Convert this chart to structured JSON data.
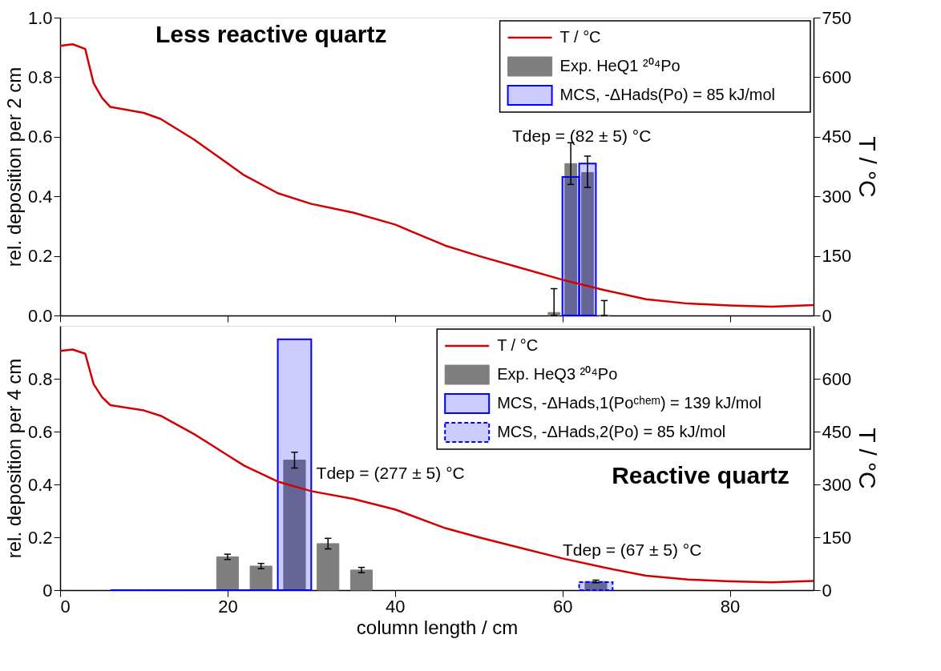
{
  "chart_data": [
    {
      "type": "bar",
      "ylabel": "rel. deposition per 2 cm",
      "y2label": "T / °C",
      "xlim": [
        0,
        90
      ],
      "xticks": [
        0,
        20,
        40,
        60,
        80
      ],
      "ylim": [
        0,
        1
      ],
      "yticks": [
        {
          "value": 0,
          "label": "0.0"
        },
        0.2,
        0.4,
        0.6,
        0.8,
        {
          "value": 1,
          "label": "1.0"
        }
      ],
      "y2lim": [
        0,
        750
      ],
      "y2ticks": [
        0,
        150,
        300,
        450,
        600,
        750
      ],
      "tick_labels": "y",
      "legend": "top right",
      "grid": false,
      "annotations": [
        "Less reactive quartz",
        "Tdep = (82 ± 5) °C"
      ],
      "series": [
        {
          "name": "T / °C",
          "type": "line",
          "axis": "y2",
          "color": "#d40000",
          "x": [
            0,
            1.5,
            3,
            4,
            5,
            6,
            10,
            12,
            16,
            20,
            22,
            26,
            30,
            35,
            40,
            46,
            50,
            55,
            60,
            65,
            70,
            75,
            80,
            85,
            90
          ],
          "values": [
            679,
            683,
            671,
            585,
            548,
            525,
            510,
            495,
            443,
            383,
            353,
            308,
            281,
            259,
            229,
            176,
            150,
            120,
            90,
            64,
            41,
            30,
            25,
            22,
            26
          ]
        },
        {
          "name": "Exp. HeQ1 ²⁰⁴Po",
          "color": "#7f7f7f",
          "x": [
            59,
            61,
            63,
            65
          ],
          "values": [
            0.01,
            0.51,
            0.48,
            0
          ],
          "errors": [
            [
              0,
              0.09
            ],
            [
              0.44,
              0.58
            ],
            [
              0.43,
              0.535
            ],
            [
              0,
              0.05
            ]
          ]
        },
        {
          "name": "MCS, -ΔHads(Po) = 85 kJ/mol",
          "color": "#0000ff",
          "x": [
            61,
            63
          ],
          "values": [
            0.465,
            0.51
          ]
        }
      ]
    },
    {
      "type": "bar",
      "xlabel": "column length / cm",
      "ylabel": "rel. deposition per 4 cm",
      "y2label": "T / °C",
      "xlim": [
        0,
        90
      ],
      "xticks": [
        0,
        20,
        40,
        60,
        80
      ],
      "ylim": [
        0,
        1
      ],
      "yticks": [
        0,
        0.2,
        0.4,
        0.6,
        0.8
      ],
      "y2lim": [
        0,
        750
      ],
      "y2ticks": [
        0,
        150,
        300,
        450,
        600
      ],
      "legend": "top right",
      "grid": false,
      "annotations": [
        "Reactive quartz",
        "Tdep = (277 ± 5) °C",
        "Tdep = (67 ± 5) °C"
      ],
      "series": [
        {
          "name": "T / °C",
          "type": "line",
          "axis": "y2",
          "color": "#d40000",
          "x": [
            0,
            1.5,
            3,
            4,
            5,
            6,
            10,
            12,
            16,
            20,
            22,
            26,
            30,
            35,
            40,
            46,
            50,
            55,
            60,
            65,
            70,
            75,
            80,
            85,
            90
          ],
          "values": [
            679,
            683,
            671,
            585,
            548,
            525,
            510,
            495,
            443,
            383,
            353,
            308,
            281,
            259,
            229,
            176,
            150,
            120,
            90,
            64,
            41,
            30,
            25,
            22,
            26
          ]
        },
        {
          "name": "Exp. HeQ3 ²⁰⁴Po",
          "color": "#7f7f7f",
          "x": [
            20,
            24,
            28,
            32,
            36,
            64
          ],
          "values": [
            0.126,
            0.091,
            0.492,
            0.176,
            0.076,
            0.033
          ],
          "errors": [
            0.01,
            0.01,
            0.03,
            0.02,
            0.01,
            0.005
          ]
        },
        {
          "name": "MCS, -ΔHads,1(Poᶜʰᵉᵐ) = 139 kJ/mol",
          "color": "#0000ff",
          "x": [
            8,
            12,
            16,
            20,
            24,
            28
          ],
          "values": [
            0,
            0,
            0,
            0,
            0,
            0.949
          ]
        },
        {
          "name": "MCS, -ΔHads,2(Po) = 85 kJ/mol",
          "color": "#0000ff",
          "line_style": "dashed",
          "x": [
            64
          ],
          "values": [
            0.03
          ]
        }
      ]
    }
  ]
}
